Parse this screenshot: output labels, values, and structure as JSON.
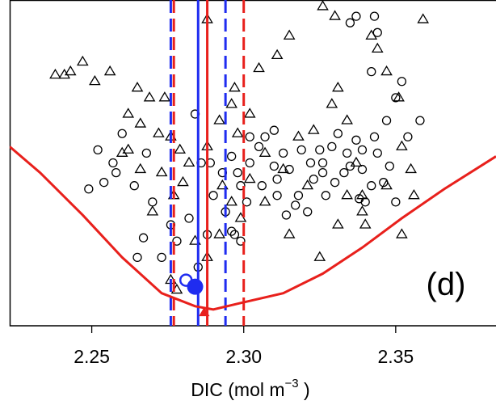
{
  "chart_data": {
    "type": "scatter",
    "x_label": "DIC (mol m",
    "x_label_sup": "−3",
    "x_label_end": " )",
    "annotation": "(d)",
    "xlim": [
      2.223,
      2.383
    ],
    "ylim": [
      0,
      100
    ],
    "xticks": [
      2.25,
      {
        "value": 2.3,
        "label": "2.30"
      },
      2.35
    ],
    "series": [
      {
        "marker": "triangle",
        "color": "#000000",
        "x": [
          2.238,
          2.241,
          2.243,
          2.247,
          2.251,
          2.256,
          2.265,
          2.269,
          2.274,
          2.262,
          2.266,
          2.272,
          2.276,
          2.279,
          2.262,
          2.266,
          2.273,
          2.277,
          2.28,
          2.282,
          2.288,
          2.292,
          2.296,
          2.298,
          2.293,
          2.296,
          2.299,
          2.302,
          2.307,
          2.313,
          2.318,
          2.323,
          2.329,
          2.331,
          2.334,
          2.337,
          2.339,
          2.342,
          2.344,
          2.347,
          2.351,
          2.352,
          2.355,
          2.359,
          2.33,
          2.326,
          2.315,
          2.311,
          2.305,
          2.288,
          2.297,
          2.302,
          2.307,
          2.315,
          2.325,
          2.331,
          2.339,
          2.347,
          2.276,
          2.278,
          2.284,
          2.288,
          2.292,
          2.27,
          2.26,
          2.356,
          2.352,
          2.34,
          2.334,
          2.321
        ],
        "values": [
          77,
          77,
          78,
          81,
          75,
          78,
          73,
          70,
          70,
          65,
          62,
          59,
          58,
          54,
          54,
          48,
          47,
          40,
          44,
          50,
          55,
          63,
          68,
          59,
          43,
          38,
          33,
          45,
          53,
          48,
          58,
          60,
          68,
          73,
          63,
          50,
          40,
          89,
          85,
          78,
          70,
          55,
          48,
          94,
          95,
          98,
          89,
          83,
          79,
          94,
          73,
          65,
          38,
          28,
          21,
          31,
          35,
          43,
          14,
          11,
          26,
          21,
          28,
          35,
          53,
          40,
          28,
          31,
          40,
          43
        ]
      },
      {
        "marker": "circle",
        "color": "#000000",
        "x": [
          2.249,
          2.252,
          2.254,
          2.257,
          2.26,
          2.264,
          2.267,
          2.27,
          2.265,
          2.273,
          2.276,
          2.278,
          2.282,
          2.285,
          2.288,
          2.289,
          2.29,
          2.293,
          2.294,
          2.296,
          2.299,
          2.302,
          2.305,
          2.307,
          2.31,
          2.313,
          2.315,
          2.318,
          2.321,
          2.323,
          2.326,
          2.329,
          2.331,
          2.334,
          2.337,
          2.339,
          2.342,
          2.344,
          2.347,
          2.35,
          2.352,
          2.342,
          2.344,
          2.337,
          2.335,
          2.343,
          2.302,
          2.306,
          2.311,
          2.314,
          2.317,
          2.322,
          2.325,
          2.327,
          2.33,
          2.333,
          2.338,
          2.34,
          2.346,
          2.348,
          2.299,
          2.297,
          2.296,
          2.301,
          2.298,
          2.31,
          2.311,
          2.319,
          2.326,
          2.335,
          2.339,
          2.343,
          2.354,
          2.358,
          2.35,
          2.286,
          2.284,
          2.268,
          2.258
        ],
        "values": [
          42,
          54,
          44,
          50,
          59,
          43,
          27,
          38,
          21,
          21,
          31,
          26,
          33,
          18,
          28,
          50,
          40,
          47,
          35,
          29,
          43,
          50,
          55,
          58,
          60,
          53,
          48,
          40,
          35,
          45,
          50,
          55,
          59,
          53,
          57,
          48,
          43,
          53,
          63,
          70,
          75,
          78,
          90,
          95,
          93,
          95,
          58,
          43,
          40,
          34,
          37,
          50,
          54,
          40,
          44,
          47,
          39,
          38,
          44,
          49,
          26,
          28,
          52,
          38,
          47,
          49,
          45,
          54,
          47,
          49,
          54,
          58,
          58,
          63,
          38,
          50,
          65,
          53,
          47
        ]
      },
      {
        "type": "line",
        "color": "#e8201c",
        "x": [
          2.223,
          2.233,
          2.247,
          2.26,
          2.273,
          2.284,
          2.29,
          2.299,
          2.313,
          2.326,
          2.339,
          2.352,
          2.366,
          2.383
        ],
        "values": [
          55,
          47,
          34,
          21,
          10,
          6,
          5,
          7,
          10,
          16,
          24,
          33,
          42,
          52
        ]
      }
    ],
    "vlines": [
      {
        "x": 2.276,
        "color": "#1f2cf0",
        "dashed": true
      },
      {
        "x": 2.294,
        "color": "#1f2cf0",
        "dashed": true
      },
      {
        "x": 2.277,
        "color": "#e8201c",
        "dashed": true
      },
      {
        "x": 2.3,
        "color": "#e8201c",
        "dashed": true
      },
      {
        "x": 2.285,
        "color": "#1f2cf0",
        "dashed": false
      },
      {
        "x": 2.288,
        "color": "#e8201c",
        "dashed": false
      }
    ],
    "highlights": [
      {
        "x": 2.281,
        "y": 14,
        "color": "#1f2cf0",
        "marker": "open-circle"
      },
      {
        "x": 2.284,
        "y": 12,
        "color": "#1f2cf0",
        "marker": "filled-circle"
      },
      {
        "x": 2.287,
        "y": 4,
        "color": "#e8201c",
        "marker": "filled-triangle"
      }
    ]
  }
}
